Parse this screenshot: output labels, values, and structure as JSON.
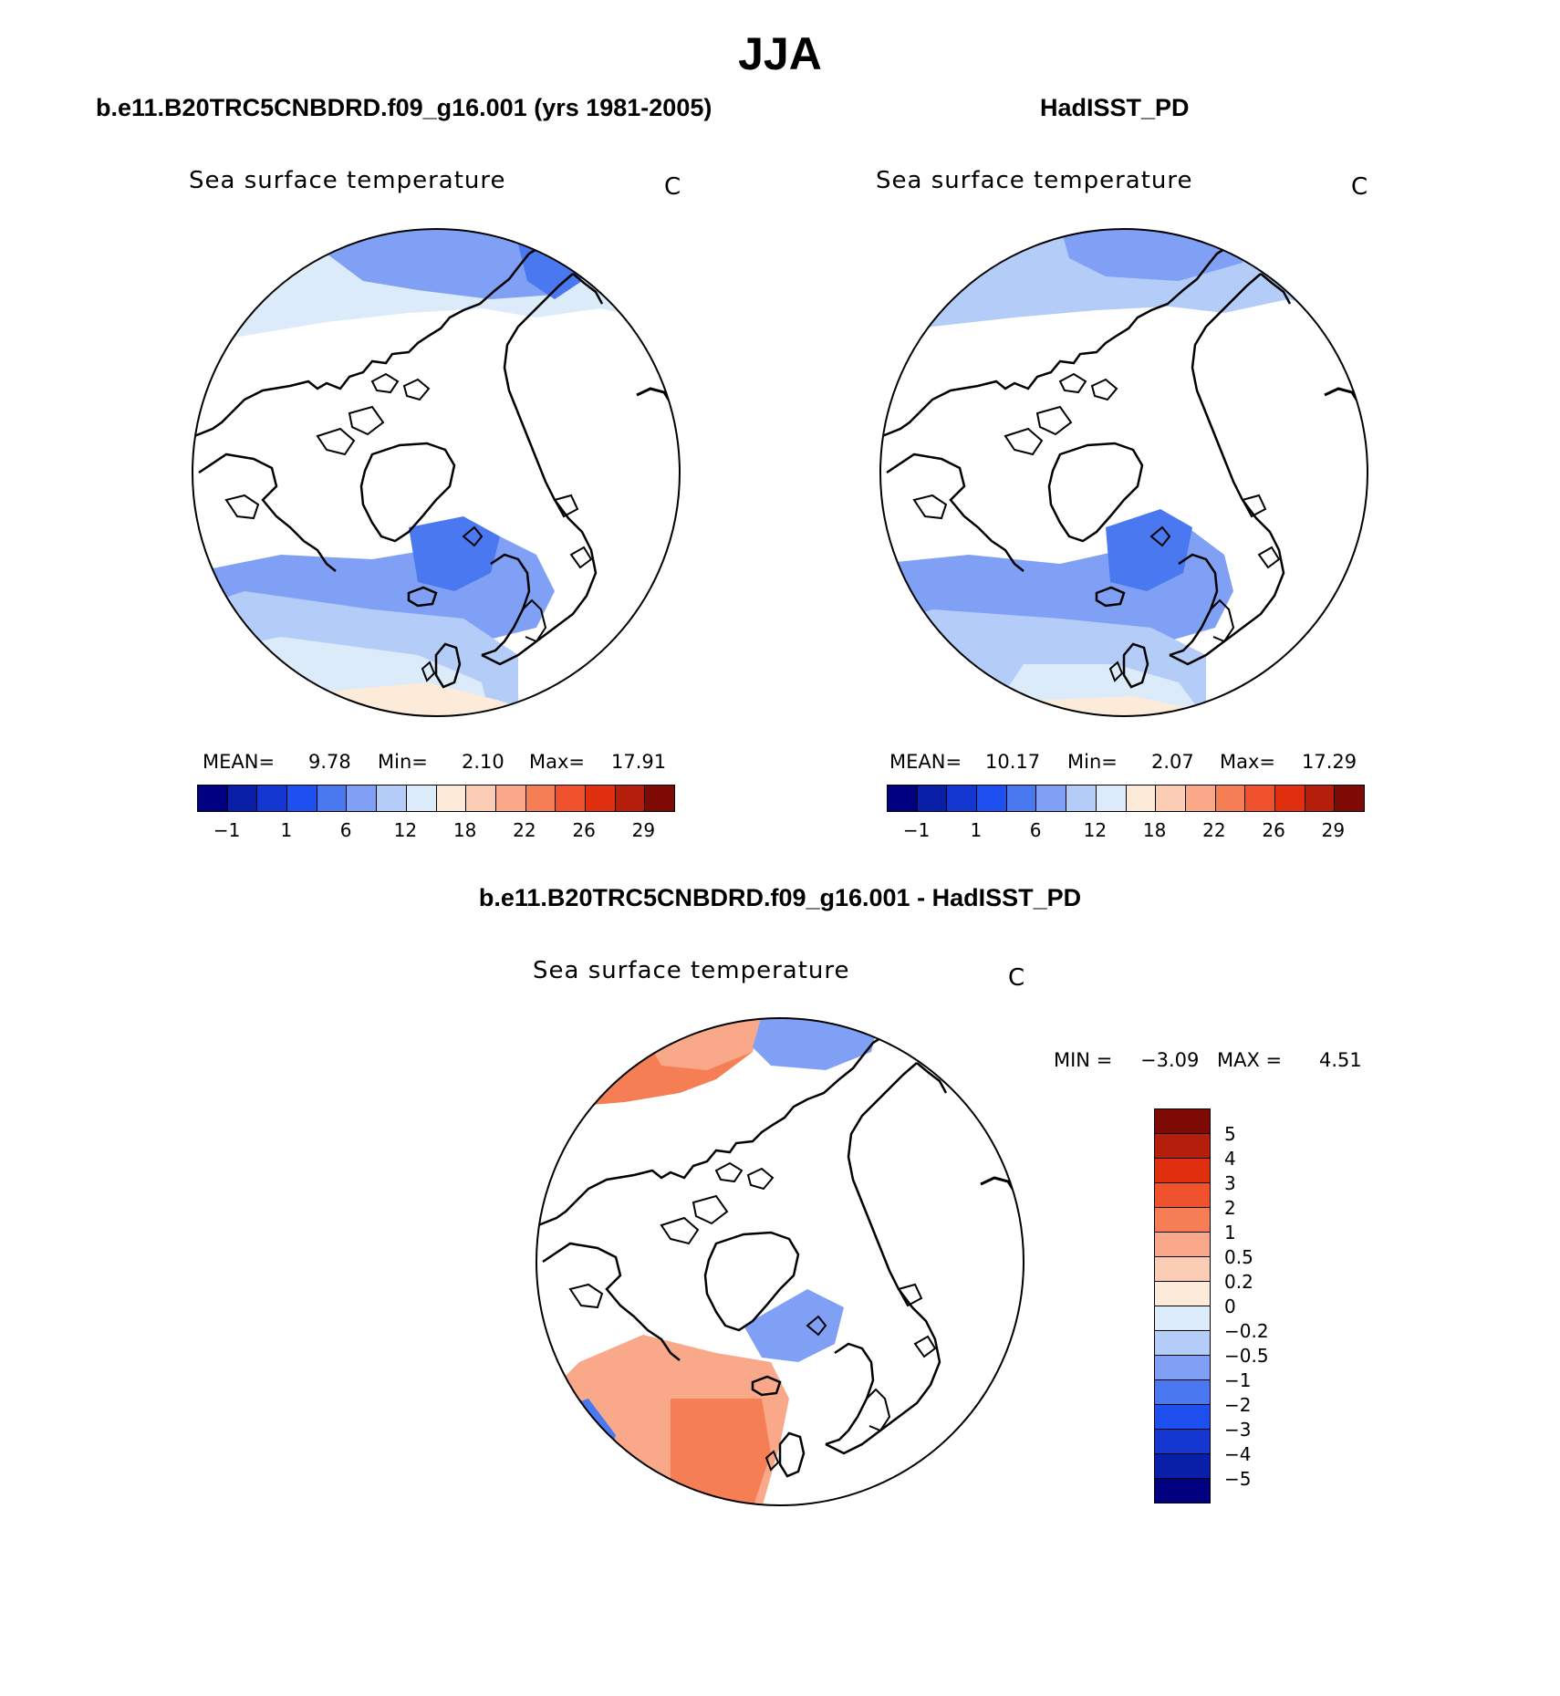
{
  "figure": {
    "title": "JJA",
    "diff_title": "b.e11.B20TRC5CNBDRD.f09_g16.001 - HadISST_PD"
  },
  "panels": [
    {
      "id": "model",
      "title": "b.e11.B20TRC5CNBDRD.f09_g16.001 (yrs 1981-2005)",
      "variable": "Sea surface temperature",
      "units": "C",
      "mean_label": "MEAN=",
      "mean": "9.78",
      "min_label": "Min=",
      "min": "2.10",
      "max_label": "Max=",
      "max": "17.91"
    },
    {
      "id": "obs",
      "title": "HadISST_PD",
      "variable": "Sea surface temperature",
      "units": "C",
      "mean_label": "MEAN=",
      "mean": "10.17",
      "min_label": "Min=",
      "min": "2.07",
      "max_label": "Max=",
      "max": "17.29"
    }
  ],
  "abs_colorbar": {
    "colors": [
      "#000080",
      "#0A1FA8",
      "#1437D2",
      "#1E50F0",
      "#4A78F0",
      "#7FA0F5",
      "#B4CDF8",
      "#DCEBFA",
      "#FDEBD9",
      "#FBCDB4",
      "#F9A88A",
      "#F57E55",
      "#F0522D",
      "#E03010",
      "#B41E0A",
      "#7D0A05"
    ],
    "tick_labels": [
      "−1",
      "1",
      "6",
      "12",
      "18",
      "22",
      "26",
      "29"
    ]
  },
  "diff_panel": {
    "variable": "Sea surface temperature",
    "units": "C",
    "min_label": "MIN =",
    "min": "−3.09",
    "max_label": "MAX =",
    "max": "4.51",
    "colorbar": {
      "colors_top_to_bottom": [
        "#7D0A05",
        "#B41E0A",
        "#E03010",
        "#F0522D",
        "#F57E55",
        "#F9A88A",
        "#FBCDB4",
        "#FDEBD9",
        "#DCEBFA",
        "#B4CDF8",
        "#7FA0F5",
        "#4A78F0",
        "#1E50F0",
        "#1437D2",
        "#0A1FA8",
        "#000080"
      ],
      "labels_top_to_bottom": [
        "5",
        "4",
        "3",
        "2",
        "1",
        "0.5",
        "0.2",
        "0",
        "−0.2",
        "−0.5",
        "−1",
        "−2",
        "−3",
        "−4",
        "−5"
      ]
    }
  }
}
